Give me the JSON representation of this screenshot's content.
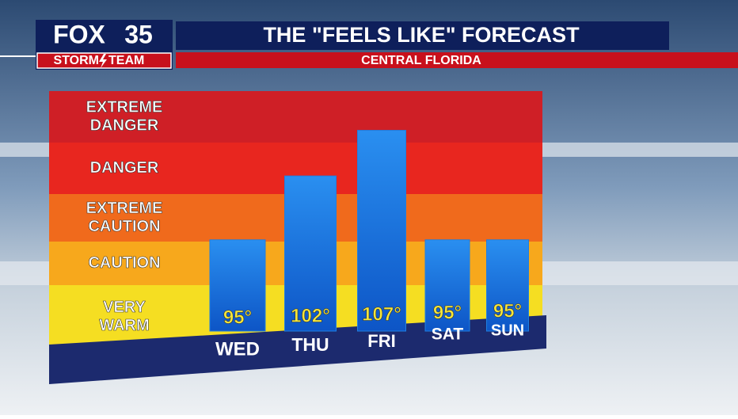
{
  "logo": {
    "brand": "FOX",
    "channel": "35",
    "team_left": "STORM",
    "team_right": "TEAM"
  },
  "chart_data": {
    "type": "bar",
    "title": "THE \"FEELS LIKE\" FORECAST",
    "subtitle": "CENTRAL FLORIDA",
    "categories": [
      "WED",
      "THU",
      "FRI",
      "SAT",
      "SUN"
    ],
    "values": [
      95,
      102,
      107,
      95,
      95
    ],
    "value_labels": [
      "95°",
      "102°",
      "107°",
      "95°",
      "95°"
    ],
    "color": "#1f7fe0",
    "ylim": [
      85,
      110
    ],
    "zones": [
      {
        "lines": [
          "EXTREME",
          "DANGER"
        ],
        "color": "#cf1f26"
      },
      {
        "lines": [
          "DANGER"
        ],
        "color": "#e8261f"
      },
      {
        "lines": [
          "EXTREME",
          "CAUTION"
        ],
        "color": "#f06a1c"
      },
      {
        "lines": [
          "CAUTION"
        ],
        "color": "#f7a81c"
      },
      {
        "lines": [
          "VERY",
          "WARM"
        ],
        "color": "#f5de22"
      }
    ]
  }
}
